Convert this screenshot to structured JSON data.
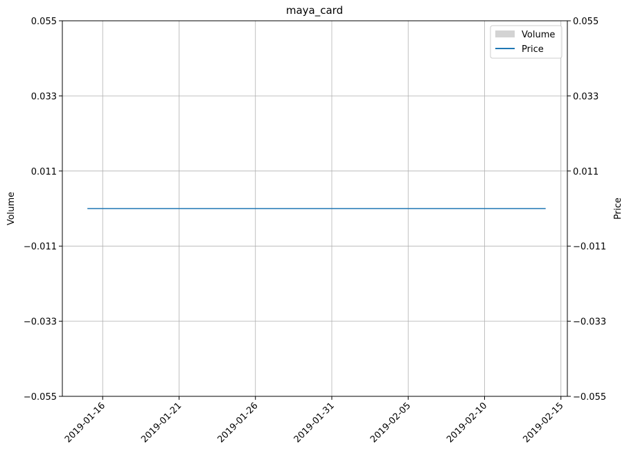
{
  "chart_data": {
    "type": "line",
    "title": "maya_card",
    "xlabel": "",
    "ylabel_left": "Volume",
    "ylabel_right": "Price",
    "x_ticks": [
      "2019-01-16",
      "2019-01-21",
      "2019-01-26",
      "2019-01-31",
      "2019-02-05",
      "2019-02-10",
      "2019-02-15"
    ],
    "y_ticks_left": [
      "0.055",
      "0.033",
      "0.011",
      "−0.011",
      "−0.033",
      "−0.055"
    ],
    "y_ticks_right": [
      "0.055",
      "0.033",
      "0.011",
      "−0.011",
      "−0.033",
      "−0.055"
    ],
    "ylim_left": [
      -0.055,
      0.055
    ],
    "ylim_right": [
      -0.055,
      0.055
    ],
    "xlim": [
      "2019-01-13",
      "2019-02-15"
    ],
    "grid": true,
    "legend_position": "top-right",
    "series": [
      {
        "name": "Volume",
        "type": "bar",
        "axis": "left",
        "color": "#d3d3d3",
        "x": [
          "2019-01-15",
          "2019-02-14"
        ],
        "values": [
          0,
          0
        ]
      },
      {
        "name": "Price",
        "type": "line",
        "axis": "right",
        "color": "#1f77b4",
        "x": [
          "2019-01-15",
          "2019-02-14"
        ],
        "values": [
          0,
          0
        ]
      }
    ]
  }
}
